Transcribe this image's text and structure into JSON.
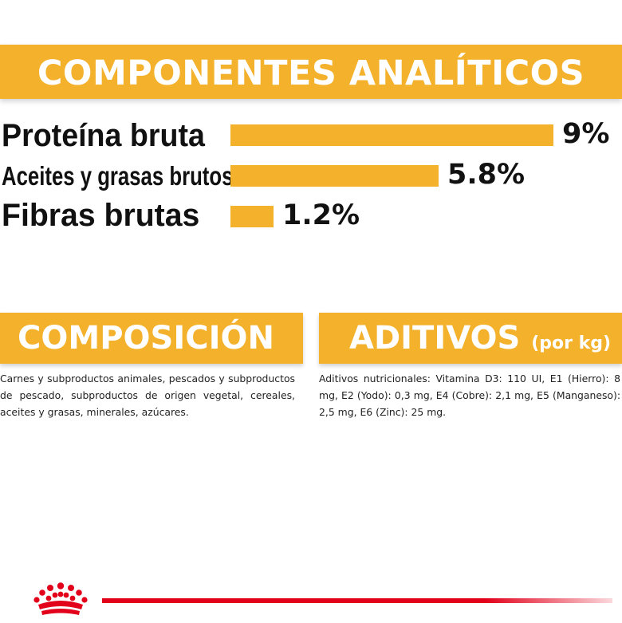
{
  "analytic": {
    "title": "COMPONENTES ANALÍTICOS",
    "items": [
      {
        "label": "Proteína bruta",
        "value": "9%",
        "percent": 9
      },
      {
        "label": "Aceites y grasas brutos",
        "value": "5.8%",
        "percent": 5.8
      },
      {
        "label": "Fibras brutas",
        "value": "1.2%",
        "percent": 1.2
      }
    ]
  },
  "composicion": {
    "title": "COMPOSICIÓN",
    "text": "Carnes y subproductos animales, pescados y subproductos de pescado, subproductos de origen vegetal, cereales, aceites y grasas, minerales, azúcares."
  },
  "aditivos": {
    "title": "ADITIVOS",
    "subtitle": "(por kg)",
    "text": "Aditivos nutricionales: Vitamina D3: 110 UI, E1 (Hierro): 8 mg, E2 (Yodo): 0,3 mg, E4 (Cobre): 2,1 mg, E5 (Manganeso): 2,5 mg, E6 (Zinc): 25 mg."
  },
  "colors": {
    "accent": "#f3b12c",
    "brand_red": "#e2001a"
  },
  "icons": {
    "logo": "royal-crown-icon"
  }
}
